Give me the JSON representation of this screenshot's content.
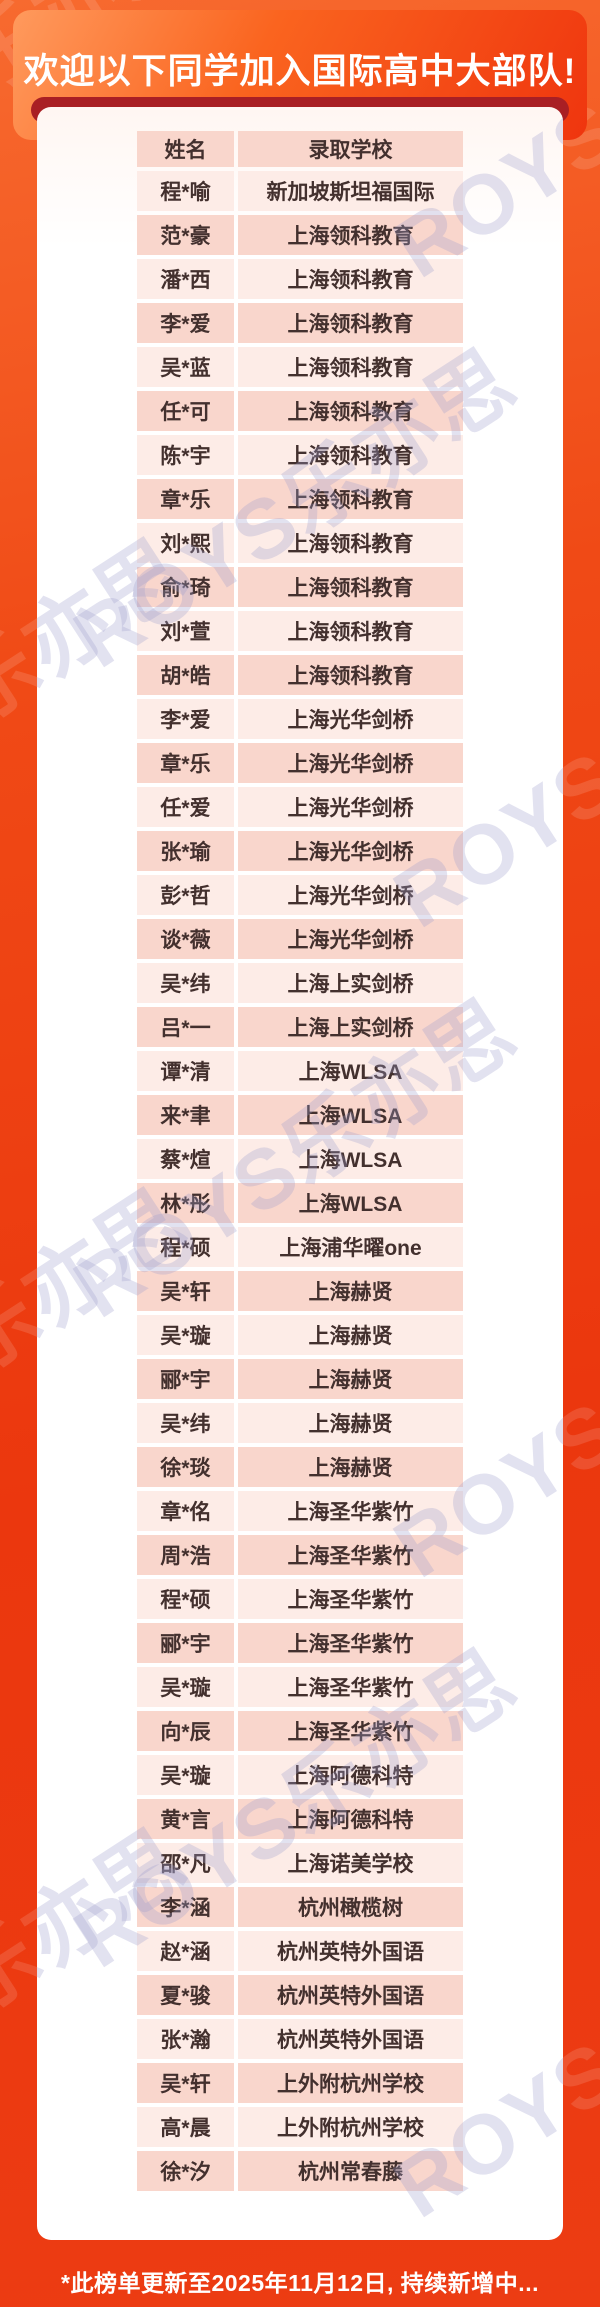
{
  "banner": {
    "title": "欢迎以下同学加入国际高中大部队!"
  },
  "table": {
    "columns": [
      "姓名",
      "录取学校"
    ],
    "rows": [
      {
        "name": "程*喻",
        "school": "新加坡斯坦福国际"
      },
      {
        "name": "范*豪",
        "school": "上海领科教育"
      },
      {
        "name": "潘*西",
        "school": "上海领科教育"
      },
      {
        "name": "李*爱",
        "school": "上海领科教育"
      },
      {
        "name": "吴*蓝",
        "school": "上海领科教育"
      },
      {
        "name": "任*可",
        "school": "上海领科教育"
      },
      {
        "name": "陈*宇",
        "school": "上海领科教育"
      },
      {
        "name": "章*乐",
        "school": "上海领科教育"
      },
      {
        "name": "刘*熙",
        "school": "上海领科教育"
      },
      {
        "name": "俞*琦",
        "school": "上海领科教育"
      },
      {
        "name": "刘*萱",
        "school": "上海领科教育"
      },
      {
        "name": "胡*皓",
        "school": "上海领科教育"
      },
      {
        "name": "李*爱",
        "school": "上海光华剑桥"
      },
      {
        "name": "章*乐",
        "school": "上海光华剑桥"
      },
      {
        "name": "任*爱",
        "school": "上海光华剑桥"
      },
      {
        "name": "张*瑜",
        "school": "上海光华剑桥"
      },
      {
        "name": "彭*哲",
        "school": "上海光华剑桥"
      },
      {
        "name": "谈*薇",
        "school": "上海光华剑桥"
      },
      {
        "name": "吴*纬",
        "school": "上海上实剑桥"
      },
      {
        "name": "吕*一",
        "school": "上海上实剑桥"
      },
      {
        "name": "谭*清",
        "school": "上海WLSA"
      },
      {
        "name": "来*聿",
        "school": "上海WLSA"
      },
      {
        "name": "蔡*煊",
        "school": "上海WLSA"
      },
      {
        "name": "林*彤",
        "school": "上海WLSA"
      },
      {
        "name": "程*硕",
        "school": "上海浦华曜one"
      },
      {
        "name": "吴*轩",
        "school": "上海赫贤"
      },
      {
        "name": "吴*璇",
        "school": "上海赫贤"
      },
      {
        "name": "郦*宇",
        "school": "上海赫贤"
      },
      {
        "name": "吴*纬",
        "school": "上海赫贤"
      },
      {
        "name": "徐*琰",
        "school": "上海赫贤"
      },
      {
        "name": "章*佲",
        "school": "上海圣华紫竹"
      },
      {
        "name": "周*浩",
        "school": "上海圣华紫竹"
      },
      {
        "name": "程*硕",
        "school": "上海圣华紫竹"
      },
      {
        "name": "郦*宇",
        "school": "上海圣华紫竹"
      },
      {
        "name": "吴*璇",
        "school": "上海圣华紫竹"
      },
      {
        "name": "向*辰",
        "school": "上海圣华紫竹"
      },
      {
        "name": "吴*璇",
        "school": "上海阿德科特"
      },
      {
        "name": "黄*言",
        "school": "上海阿德科特"
      },
      {
        "name": "邵*凡",
        "school": "上海诺美学校"
      },
      {
        "name": "李*涵",
        "school": "杭州橄榄树"
      },
      {
        "name": "赵*涵",
        "school": "杭州英特外国语"
      },
      {
        "name": "夏*骏",
        "school": "杭州英特外国语"
      },
      {
        "name": "张*瀚",
        "school": "杭州英特外国语"
      },
      {
        "name": "吴*轩",
        "school": "上外附杭州学校"
      },
      {
        "name": "高*晨",
        "school": "上外附杭州学校"
      },
      {
        "name": "徐*汐",
        "school": "杭州常春藤"
      }
    ]
  },
  "footer": {
    "note": "*此榜单更新至2025年11月12日, 持续新增中..."
  },
  "watermark": {
    "text": "ROYS乐亦思"
  },
  "colors": {
    "background": "#ee3a12",
    "banner_top": "#ff9a5d",
    "banner_bottom": "#ef350e",
    "band": "#a91f24",
    "row_light": "#fdece7",
    "row_medium": "#f9d6cc",
    "cell_text": "#43302e",
    "title_text": "#ffffff"
  }
}
